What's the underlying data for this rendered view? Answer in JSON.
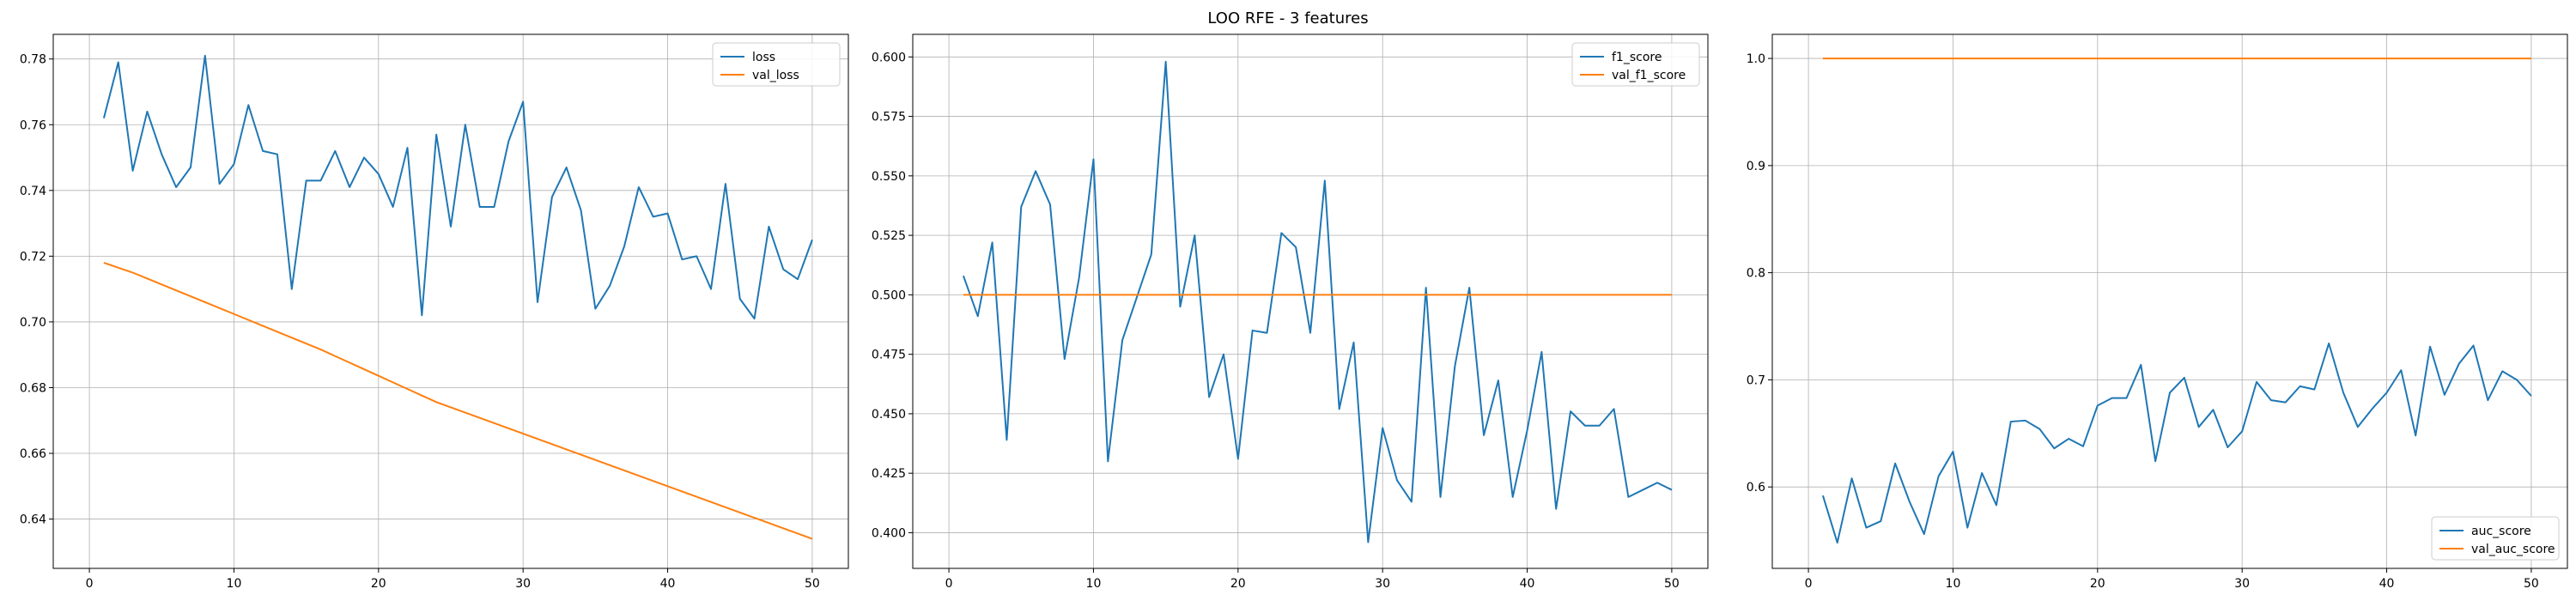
{
  "figure": {
    "title": "LOO RFE - 3 features"
  },
  "colors": {
    "series_blue": "#1f77b4",
    "series_orange": "#ff7f0e",
    "grid": "#b0b0b0"
  },
  "chart_data": [
    {
      "type": "line",
      "title": "",
      "xlabel": "",
      "ylabel": "",
      "xlim": [
        -2.5,
        52.5
      ],
      "ylim": [
        0.625,
        0.7875
      ],
      "xticks": [
        0,
        10,
        20,
        30,
        40,
        50
      ],
      "yticks": [
        0.64,
        0.66,
        0.68,
        0.7,
        0.72,
        0.74,
        0.76,
        0.78
      ],
      "ytick_labels": [
        "0.64",
        "0.66",
        "0.68",
        "0.70",
        "0.72",
        "0.74",
        "0.76",
        "0.78"
      ],
      "grid": true,
      "legend_position": "top-right",
      "x": [
        1,
        2,
        3,
        4,
        5,
        6,
        7,
        8,
        9,
        10,
        11,
        12,
        13,
        14,
        15,
        16,
        17,
        18,
        19,
        20,
        21,
        22,
        23,
        24,
        25,
        26,
        27,
        28,
        29,
        30,
        31,
        32,
        33,
        34,
        35,
        36,
        37,
        38,
        39,
        40,
        41,
        42,
        43,
        44,
        45,
        46,
        47,
        48,
        49,
        50
      ],
      "series": [
        {
          "name": "loss",
          "color": "#1f77b4",
          "values": [
            0.762,
            0.779,
            0.746,
            0.764,
            0.751,
            0.741,
            0.747,
            0.781,
            0.742,
            0.748,
            0.766,
            0.752,
            0.751,
            0.71,
            0.743,
            0.743,
            0.752,
            0.741,
            0.75,
            0.745,
            0.735,
            0.753,
            0.702,
            0.757,
            0.729,
            0.76,
            0.735,
            0.735,
            0.755,
            0.767,
            0.706,
            0.738,
            0.747,
            0.734,
            0.704,
            0.711,
            0.723,
            0.741,
            0.732,
            0.733,
            0.719,
            0.72,
            0.71,
            0.742,
            0.707,
            0.701,
            0.729,
            0.716,
            0.713,
            0.725
          ]
        },
        {
          "name": "val_loss",
          "color": "#ff7f0e",
          "values": [
            0.718,
            0.7165,
            0.715,
            0.7132,
            0.7114,
            0.7096,
            0.7078,
            0.706,
            0.7042,
            0.7024,
            0.7006,
            0.6988,
            0.697,
            0.6952,
            0.6934,
            0.6916,
            0.6896,
            0.6876,
            0.6856,
            0.6836,
            0.6816,
            0.6796,
            0.6776,
            0.6756,
            0.674,
            0.6724,
            0.6708,
            0.6692,
            0.6676,
            0.666,
            0.6644,
            0.6628,
            0.6612,
            0.6596,
            0.658,
            0.6564,
            0.6548,
            0.6532,
            0.6516,
            0.65,
            0.6484,
            0.6468,
            0.6452,
            0.6436,
            0.642,
            0.6404,
            0.6388,
            0.6372,
            0.6356,
            0.634
          ]
        }
      ]
    },
    {
      "type": "line",
      "title": "",
      "xlabel": "",
      "ylabel": "",
      "xlim": [
        -2.5,
        52.5
      ],
      "ylim": [
        0.385,
        0.6095
      ],
      "xticks": [
        0,
        10,
        20,
        30,
        40,
        50
      ],
      "yticks": [
        0.4,
        0.425,
        0.45,
        0.475,
        0.5,
        0.525,
        0.55,
        0.575,
        0.6
      ],
      "ytick_labels": [
        "0.400",
        "0.425",
        "0.450",
        "0.475",
        "0.500",
        "0.525",
        "0.550",
        "0.575",
        "0.600"
      ],
      "grid": true,
      "legend_position": "top-right",
      "x": [
        1,
        2,
        3,
        4,
        5,
        6,
        7,
        8,
        9,
        10,
        11,
        12,
        13,
        14,
        15,
        16,
        17,
        18,
        19,
        20,
        21,
        22,
        23,
        24,
        25,
        26,
        27,
        28,
        29,
        30,
        31,
        32,
        33,
        34,
        35,
        36,
        37,
        38,
        39,
        40,
        41,
        42,
        43,
        44,
        45,
        46,
        47,
        48,
        49,
        50
      ],
      "series": [
        {
          "name": "f1_score",
          "color": "#1f77b4",
          "values": [
            0.508,
            0.491,
            0.522,
            0.439,
            0.537,
            0.552,
            0.538,
            0.473,
            0.507,
            0.557,
            0.43,
            0.481,
            0.499,
            0.517,
            0.598,
            0.495,
            0.525,
            0.457,
            0.475,
            0.431,
            0.485,
            0.484,
            0.526,
            0.52,
            0.484,
            0.548,
            0.452,
            0.48,
            0.396,
            0.444,
            0.422,
            0.413,
            0.503,
            0.415,
            0.47,
            0.503,
            0.441,
            0.464,
            0.415,
            0.443,
            0.476,
            0.41,
            0.451,
            0.445,
            0.445,
            0.452,
            0.415,
            0.418,
            0.421,
            0.418
          ]
        },
        {
          "name": "val_f1_score",
          "color": "#ff7f0e",
          "values": [
            0.5,
            0.5,
            0.5,
            0.5,
            0.5,
            0.5,
            0.5,
            0.5,
            0.5,
            0.5,
            0.5,
            0.5,
            0.5,
            0.5,
            0.5,
            0.5,
            0.5,
            0.5,
            0.5,
            0.5,
            0.5,
            0.5,
            0.5,
            0.5,
            0.5,
            0.5,
            0.5,
            0.5,
            0.5,
            0.5,
            0.5,
            0.5,
            0.5,
            0.5,
            0.5,
            0.5,
            0.5,
            0.5,
            0.5,
            0.5,
            0.5,
            0.5,
            0.5,
            0.5,
            0.5,
            0.5,
            0.5,
            0.5,
            0.5,
            0.5
          ]
        }
      ]
    },
    {
      "type": "line",
      "title": "",
      "xlabel": "",
      "ylabel": "",
      "xlim": [
        -2.5,
        52.5
      ],
      "ylim": [
        0.524,
        1.0225
      ],
      "xticks": [
        0,
        10,
        20,
        30,
        40,
        50
      ],
      "yticks": [
        0.6,
        0.7,
        0.8,
        0.9,
        1.0
      ],
      "ytick_labels": [
        "0.6",
        "0.7",
        "0.8",
        "0.9",
        "1.0"
      ],
      "grid": true,
      "legend_position": "bottom-right",
      "x": [
        1,
        2,
        3,
        4,
        5,
        6,
        7,
        8,
        9,
        10,
        11,
        12,
        13,
        14,
        15,
        16,
        17,
        18,
        19,
        20,
        21,
        22,
        23,
        24,
        25,
        26,
        27,
        28,
        29,
        30,
        31,
        32,
        33,
        34,
        35,
        36,
        37,
        38,
        39,
        40,
        41,
        42,
        43,
        44,
        45,
        46,
        47,
        48,
        49,
        50
      ],
      "series": [
        {
          "name": "auc_score",
          "color": "#1f77b4",
          "values": [
            0.592,
            0.548,
            0.608,
            0.562,
            0.568,
            0.622,
            0.586,
            0.556,
            0.61,
            0.633,
            0.562,
            0.613,
            0.583,
            0.661,
            0.662,
            0.654,
            0.636,
            0.645,
            0.638,
            0.676,
            0.683,
            0.683,
            0.714,
            0.624,
            0.688,
            0.702,
            0.656,
            0.672,
            0.637,
            0.652,
            0.698,
            0.681,
            0.679,
            0.694,
            0.691,
            0.734,
            0.688,
            0.656,
            0.673,
            0.688,
            0.709,
            0.648,
            0.731,
            0.686,
            0.715,
            0.732,
            0.681,
            0.708,
            0.7,
            0.685
          ]
        },
        {
          "name": "val_auc_score",
          "color": "#ff7f0e",
          "values": [
            1.0,
            1.0,
            1.0,
            1.0,
            1.0,
            1.0,
            1.0,
            1.0,
            1.0,
            1.0,
            1.0,
            1.0,
            1.0,
            1.0,
            1.0,
            1.0,
            1.0,
            1.0,
            1.0,
            1.0,
            1.0,
            1.0,
            1.0,
            1.0,
            1.0,
            1.0,
            1.0,
            1.0,
            1.0,
            1.0,
            1.0,
            1.0,
            1.0,
            1.0,
            1.0,
            1.0,
            1.0,
            1.0,
            1.0,
            1.0,
            1.0,
            1.0,
            1.0,
            1.0,
            1.0,
            1.0,
            1.0,
            1.0,
            1.0,
            1.0
          ]
        }
      ]
    }
  ]
}
